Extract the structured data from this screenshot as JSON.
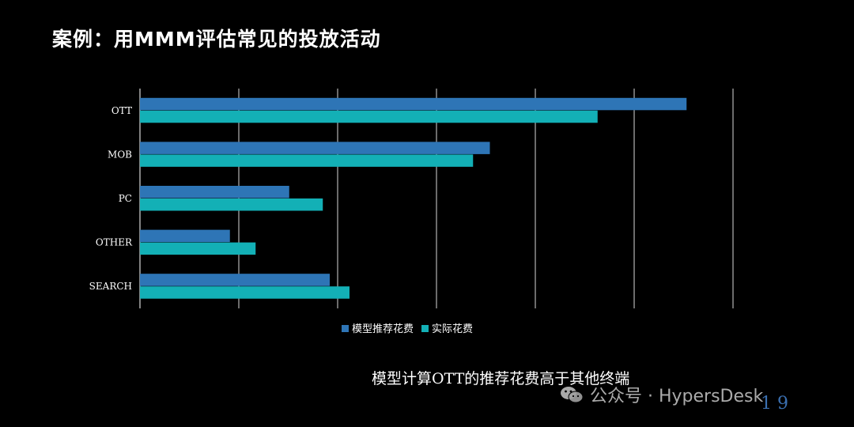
{
  "slide": {
    "title": "案例：用MMM评估常见的投放活动",
    "caption": "模型计算OTT的推荐花费高于其他终端",
    "watermark": "公众号 · HypersDesk",
    "page_mark": "1 9"
  },
  "colors": {
    "series_model": "#2e75b6",
    "series_actual": "#13b0b6",
    "gridline": "#d9d9d9"
  },
  "chart_data": {
    "type": "bar",
    "orientation": "horizontal",
    "title": "",
    "xlabel": "",
    "ylabel": "",
    "categories": [
      "OTT",
      "MOB",
      "PC",
      "OTHER",
      "SEARCH"
    ],
    "series": [
      {
        "name": "模型推荐花费",
        "values": [
          5.53,
          3.54,
          1.51,
          0.91,
          1.92
        ]
      },
      {
        "name": "实际花费",
        "values": [
          4.63,
          3.37,
          1.85,
          1.17,
          2.12
        ]
      }
    ],
    "xlim": [
      0,
      6
    ],
    "grid": true,
    "show_x_tick_labels": false,
    "legend_position": "bottom"
  }
}
